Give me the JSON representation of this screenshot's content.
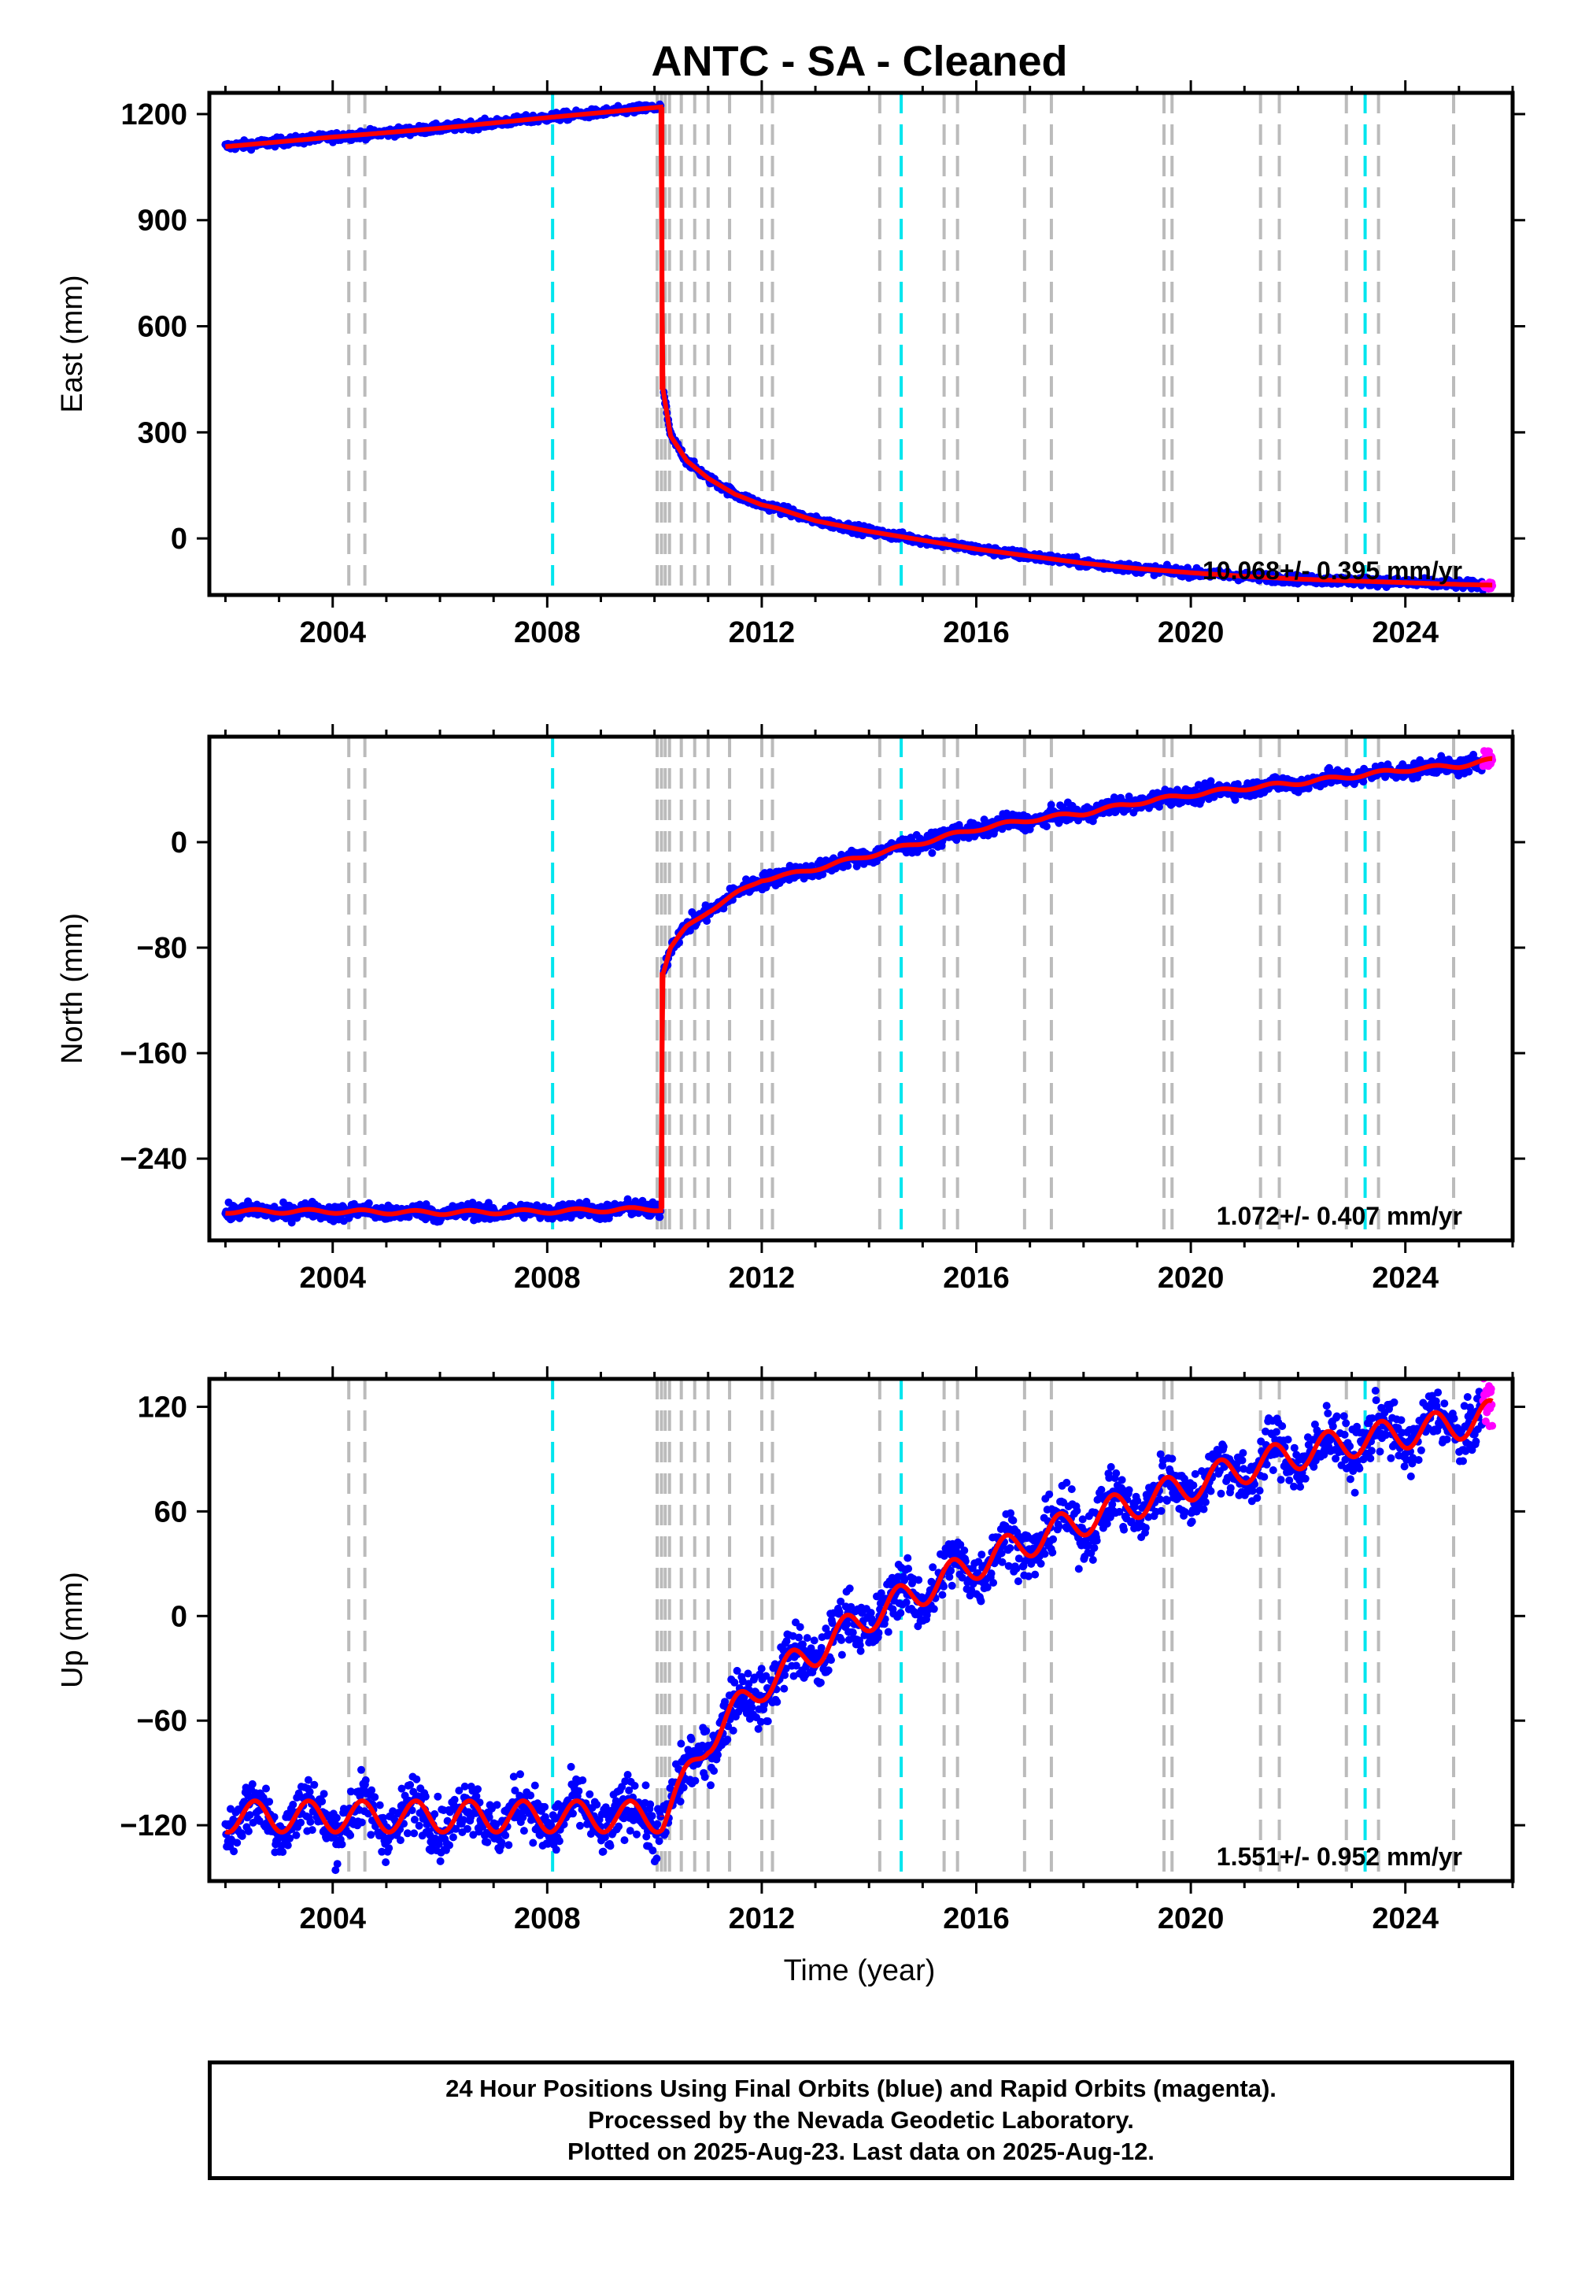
{
  "chart_data": {
    "title": "ANTC  - SA - Cleaned",
    "type": "scatter",
    "xlabel": "Time (year)",
    "xlim": [
      2001.7,
      2026.0
    ],
    "xticks": [
      2004,
      2008,
      2012,
      2016,
      2020,
      2024
    ],
    "colors": {
      "final_orbits": "#0000ff",
      "rapid_orbits": "#ff00ff",
      "model_fit": "#ff0000",
      "event_line": "#bbbbbb",
      "antenna_change_line": "#00e5ee"
    },
    "event_lines_gray": [
      2004.3,
      2004.6,
      2010.05,
      2010.13,
      2010.2,
      2010.28,
      2010.5,
      2010.75,
      2011.0,
      2011.4,
      2012.0,
      2012.2,
      2014.2,
      2015.4,
      2015.65,
      2016.9,
      2017.4,
      2019.5,
      2019.65,
      2021.3,
      2021.65,
      2022.9,
      2023.5,
      2024.9
    ],
    "event_lines_cyan": [
      2008.1,
      2014.6,
      2023.25
    ],
    "panels": [
      {
        "name": "East",
        "ylabel": "East (mm)",
        "ylim": [
          -160,
          1260
        ],
        "yticks": [
          1200,
          900,
          600,
          300,
          0
        ],
        "rate_label": "10.068+/- 0.395 mm/yr",
        "series": [
          {
            "x": [
              2002.0,
              2004.0,
              2006.0,
              2008.0,
              2010.12,
              2010.15,
              2010.3,
              2010.6,
              2011.0,
              2011.5,
              2012.0,
              2012.3,
              2012.6,
              2013.0,
              2014.0,
              2015.0,
              2016.0,
              2017.0,
              2018.0,
              2019.0,
              2020.0,
              2021.0,
              2022.0,
              2023.0,
              2024.0,
              2025.0,
              2025.6
            ],
            "y": [
              1108,
              1135,
              1160,
              1190,
              1220,
              430,
              290,
              220,
              170,
              125,
              95,
              85,
              70,
              50,
              20,
              -5,
              -30,
              -50,
              -70,
              -85,
              -97,
              -107,
              -115,
              -120,
              -125,
              -130,
              -132
            ]
          }
        ]
      },
      {
        "name": "North",
        "ylabel": "North (mm)",
        "ylim": [
          -302,
          80
        ],
        "yticks": [
          0,
          -80,
          -160,
          -240
        ],
        "rate_label": "1.072+/- 0.407 mm/yr",
        "series": [
          {
            "x": [
              2002.0,
              2004.0,
              2006.0,
              2008.0,
              2010.12,
              2010.15,
              2010.3,
              2010.6,
              2011.0,
              2011.5,
              2012.0,
              2012.5,
              2013.0,
              2014.0,
              2015.0,
              2016.0,
              2017.0,
              2018.0,
              2019.0,
              2020.0,
              2021.0,
              2022.0,
              2023.0,
              2024.0,
              2025.0,
              2025.6
            ],
            "y": [
              -280,
              -280,
              -281,
              -280,
              -278,
              -100,
              -80,
              -65,
              -52,
              -40,
              -28,
              -25,
              -20,
              -10,
              0,
              10,
              17,
              22,
              30,
              36,
              41,
              45,
              50,
              55,
              58,
              62
            ]
          }
        ]
      },
      {
        "name": "Up",
        "ylabel": "Up (mm)",
        "ylim": [
          -152,
          136
        ],
        "yticks": [
          120,
          60,
          0,
          -60,
          -120
        ],
        "rate_label": "1.551+/- 0.952 mm/yr",
        "series": [
          {
            "x": [
              2002.0,
              2004.0,
              2006.0,
              2008.0,
              2010.15,
              2010.5,
              2011.0,
              2011.5,
              2012.0,
              2013.0,
              2014.0,
              2015.0,
              2016.0,
              2017.0,
              2018.0,
              2019.0,
              2020.0,
              2021.0,
              2022.0,
              2023.0,
              2024.0,
              2025.0,
              2025.6
            ],
            "y": [
              -115,
              -115,
              -115,
              -115,
              -115,
              -100,
              -70,
              -55,
              -40,
              -20,
              0,
              15,
              30,
              43,
              55,
              65,
              75,
              85,
              93,
              100,
              105,
              110,
              115
            ]
          }
        ]
      }
    ]
  },
  "caption": {
    "line1": "24 Hour Positions Using Final Orbits (blue) and Rapid Orbits (magenta).",
    "line2": "Processed by the Nevada Geodetic Laboratory.",
    "line3": "Plotted on 2025-Aug-23. Last data on 2025-Aug-12."
  }
}
